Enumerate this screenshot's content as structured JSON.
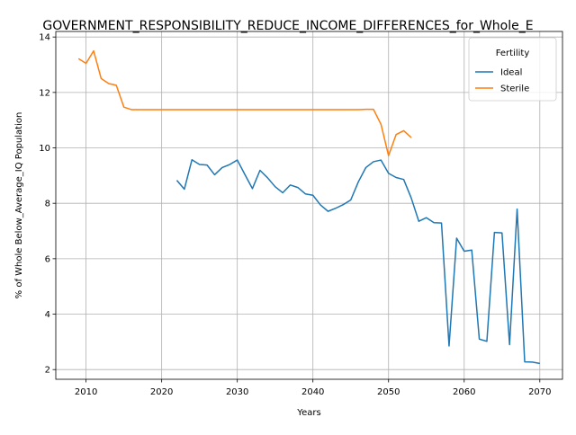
{
  "chart_data": {
    "type": "line",
    "title": "GOVERNMENT_RESPONSIBILITY_REDUCE_INCOME_DIFFERENCES_for_Whole_E",
    "xlabel": "Years",
    "ylabel": "% of Whole Below_Average_IQ Population",
    "xlim": [
      2006,
      2073
    ],
    "ylim": [
      1.65,
      14.2
    ],
    "x_ticks": [
      2010,
      2020,
      2030,
      2040,
      2050,
      2060,
      2070
    ],
    "y_ticks": [
      2,
      4,
      6,
      8,
      10,
      12,
      14
    ],
    "grid": true,
    "legend": {
      "title": "Fertility",
      "position": "top-right"
    },
    "series": [
      {
        "name": "Ideal",
        "color": "#1f77b4",
        "points": [
          [
            2022,
            8.83
          ],
          [
            2023,
            8.51
          ],
          [
            2024,
            9.57
          ],
          [
            2025,
            9.4
          ],
          [
            2026,
            9.38
          ],
          [
            2027,
            9.03
          ],
          [
            2028,
            9.29
          ],
          [
            2029,
            9.4
          ],
          [
            2030,
            9.56
          ],
          [
            2031,
            9.04
          ],
          [
            2032,
            8.53
          ],
          [
            2033,
            9.19
          ],
          [
            2034,
            8.92
          ],
          [
            2035,
            8.6
          ],
          [
            2036,
            8.38
          ],
          [
            2037,
            8.66
          ],
          [
            2038,
            8.57
          ],
          [
            2039,
            8.34
          ],
          [
            2040,
            8.29
          ],
          [
            2041,
            7.94
          ],
          [
            2042,
            7.71
          ],
          [
            2043,
            7.82
          ],
          [
            2044,
            7.95
          ],
          [
            2045,
            8.12
          ],
          [
            2046,
            8.77
          ],
          [
            2047,
            9.29
          ],
          [
            2048,
            9.5
          ],
          [
            2049,
            9.56
          ],
          [
            2050,
            9.08
          ],
          [
            2051,
            8.93
          ],
          [
            2052,
            8.86
          ],
          [
            2053,
            8.19
          ],
          [
            2054,
            7.35
          ],
          [
            2055,
            7.48
          ],
          [
            2056,
            7.3
          ],
          [
            2057,
            7.29
          ],
          [
            2058,
            2.85
          ],
          [
            2059,
            6.74
          ],
          [
            2060,
            6.27
          ],
          [
            2061,
            6.31
          ],
          [
            2062,
            3.1
          ],
          [
            2063,
            3.02
          ],
          [
            2064,
            6.95
          ],
          [
            2065,
            6.93
          ],
          [
            2066,
            2.9
          ],
          [
            2067,
            7.79
          ],
          [
            2068,
            2.28
          ],
          [
            2069,
            2.27
          ],
          [
            2070,
            2.22
          ]
        ]
      },
      {
        "name": "Sterile",
        "color": "#ff7f0e",
        "points": [
          [
            2009,
            13.22
          ],
          [
            2010,
            13.05
          ],
          [
            2011,
            13.5
          ],
          [
            2012,
            12.5
          ],
          [
            2013,
            12.32
          ],
          [
            2014,
            12.26
          ],
          [
            2015,
            11.47
          ],
          [
            2016,
            11.38
          ],
          [
            2017,
            11.38
          ],
          [
            2018,
            11.38
          ],
          [
            2019,
            11.38
          ],
          [
            2020,
            11.38
          ],
          [
            2021,
            11.38
          ],
          [
            2022,
            11.38
          ],
          [
            2023,
            11.38
          ],
          [
            2024,
            11.38
          ],
          [
            2025,
            11.38
          ],
          [
            2026,
            11.38
          ],
          [
            2027,
            11.38
          ],
          [
            2028,
            11.38
          ],
          [
            2029,
            11.38
          ],
          [
            2030,
            11.38
          ],
          [
            2031,
            11.38
          ],
          [
            2032,
            11.38
          ],
          [
            2033,
            11.38
          ],
          [
            2034,
            11.38
          ],
          [
            2035,
            11.38
          ],
          [
            2036,
            11.38
          ],
          [
            2037,
            11.38
          ],
          [
            2038,
            11.38
          ],
          [
            2039,
            11.38
          ],
          [
            2040,
            11.38
          ],
          [
            2041,
            11.38
          ],
          [
            2042,
            11.38
          ],
          [
            2043,
            11.38
          ],
          [
            2044,
            11.38
          ],
          [
            2045,
            11.38
          ],
          [
            2046,
            11.38
          ],
          [
            2047,
            11.39
          ],
          [
            2048,
            11.39
          ],
          [
            2049,
            10.85
          ],
          [
            2050,
            9.72
          ],
          [
            2051,
            10.48
          ],
          [
            2052,
            10.62
          ],
          [
            2053,
            10.37
          ]
        ]
      }
    ]
  }
}
